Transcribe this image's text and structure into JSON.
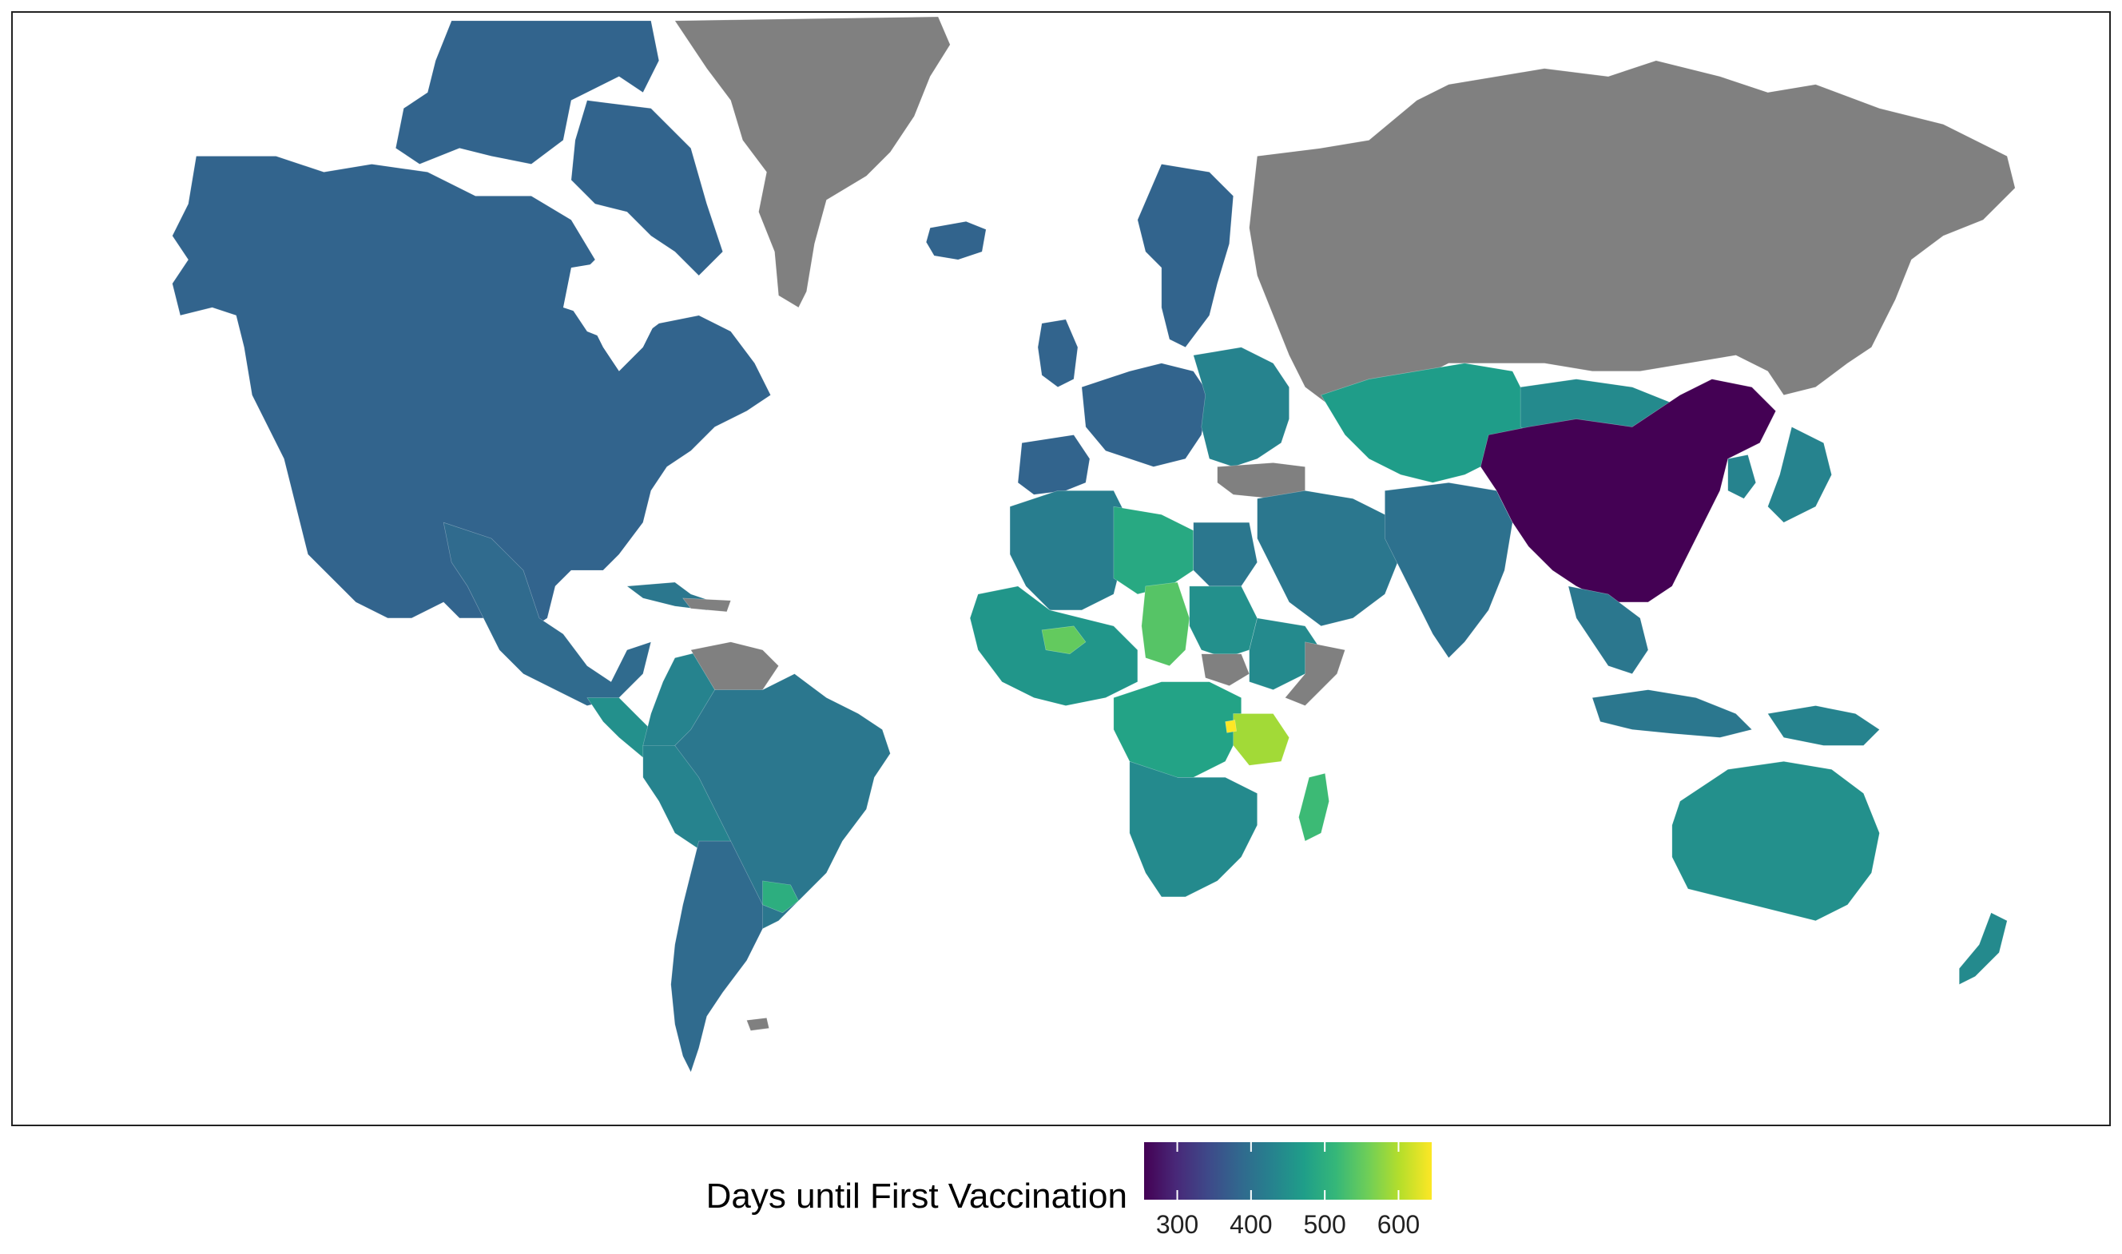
{
  "legend": {
    "title": "Days until First Vaccination",
    "range": [
      255,
      645
    ],
    "ticks": [
      300,
      400,
      500,
      600
    ],
    "colormap": "viridis",
    "stops": [
      "#440154",
      "#482878",
      "#3e4989",
      "#31688e",
      "#26828e",
      "#1f9e89",
      "#35b779",
      "#6ece58",
      "#b5de2b",
      "#fde725"
    ]
  },
  "colors": {
    "no_data": "#808080",
    "ocean": "#ffffff",
    "border": "#222222"
  },
  "map_data": {
    "type": "choropleth",
    "projection": "mercator",
    "regions": [
      {
        "id": "north-america",
        "value": 380
      },
      {
        "id": "canadian-arctic",
        "value": 380
      },
      {
        "id": "greenland",
        "value": null
      },
      {
        "id": "iceland",
        "value": 380
      },
      {
        "id": "mexico",
        "value": 390
      },
      {
        "id": "central-america",
        "value": 450
      },
      {
        "id": "caribbean",
        "value": 410
      },
      {
        "id": "northern-south-america",
        "value": 430
      },
      {
        "id": "venezuela-guianas",
        "value": null
      },
      {
        "id": "brazil",
        "value": 410
      },
      {
        "id": "andes",
        "value": 430
      },
      {
        "id": "argentina-chile",
        "value": 390
      },
      {
        "id": "uruguay",
        "value": 500
      },
      {
        "id": "falklands",
        "value": null
      },
      {
        "id": "scandinavia",
        "value": 380
      },
      {
        "id": "united-kingdom",
        "value": 380
      },
      {
        "id": "western-europe",
        "value": 380
      },
      {
        "id": "iberia",
        "value": 380
      },
      {
        "id": "eastern-europe",
        "value": 430
      },
      {
        "id": "turkey",
        "value": null
      },
      {
        "id": "russia",
        "value": null
      },
      {
        "id": "kazakhstan-central-asia",
        "value": 470
      },
      {
        "id": "mongolia",
        "value": 440
      },
      {
        "id": "middle-east",
        "value": 410
      },
      {
        "id": "south-asia",
        "value": 400
      },
      {
        "id": "china",
        "value": 255
      },
      {
        "id": "korea-japan",
        "value": 430
      },
      {
        "id": "southeast-asia",
        "value": 410
      },
      {
        "id": "indonesia",
        "value": 410
      },
      {
        "id": "new-guinea",
        "value": 430
      },
      {
        "id": "australia",
        "value": 450
      },
      {
        "id": "new-zealand",
        "value": 440
      },
      {
        "id": "north-africa",
        "value": 420
      },
      {
        "id": "libya",
        "value": 490
      },
      {
        "id": "egypt",
        "value": 410
      },
      {
        "id": "west-africa",
        "value": 460
      },
      {
        "id": "burkina-faso",
        "value": 550
      },
      {
        "id": "chad",
        "value": 540
      },
      {
        "id": "sudan",
        "value": 450
      },
      {
        "id": "south-sudan",
        "value": null
      },
      {
        "id": "horn-of-africa",
        "value": 440
      },
      {
        "id": "somalia",
        "value": null
      },
      {
        "id": "central-africa",
        "value": 480
      },
      {
        "id": "tanzania",
        "value": 590
      },
      {
        "id": "burundi",
        "value": 645
      },
      {
        "id": "southern-africa",
        "value": 440
      },
      {
        "id": "madagascar",
        "value": 520
      }
    ]
  }
}
